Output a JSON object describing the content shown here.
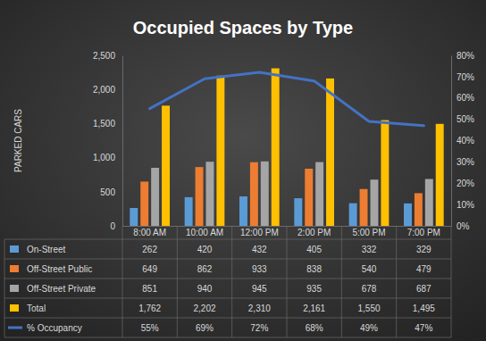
{
  "chart_data": {
    "type": "bar",
    "title": "Occupied Spaces by Type",
    "ylabel": "PARKED CARS",
    "categories": [
      "8:00 AM",
      "10:00 AM",
      "12:00 PM",
      "2:00 PM",
      "5:00 PM",
      "7:00 PM"
    ],
    "ylim": [
      0,
      2500
    ],
    "yticks": [
      0,
      500,
      {
        "value": 1000,
        "label": "1,000"
      },
      {
        "value": 1500,
        "label": "1,500"
      },
      {
        "value": 2000,
        "label": "2,000"
      },
      {
        "value": 2500,
        "label": "2,500"
      }
    ],
    "y2lim": [
      0,
      80
    ],
    "y2ticks": [
      {
        "value": 0,
        "label": "0%"
      },
      {
        "value": 10,
        "label": "10%"
      },
      {
        "value": 20,
        "label": "20%"
      },
      {
        "value": 30,
        "label": "30%"
      },
      {
        "value": 40,
        "label": "40%"
      },
      {
        "value": 50,
        "label": "50%"
      },
      {
        "value": 60,
        "label": "60%"
      },
      {
        "value": 70,
        "label": "70%"
      },
      {
        "value": 80,
        "label": "80%"
      }
    ],
    "grid": false,
    "data_labels": true,
    "series": [
      {
        "name": "On-Street",
        "type": "bar",
        "color": "#5b9bd5",
        "values": [
          262,
          420,
          432,
          405,
          332,
          329
        ]
      },
      {
        "name": "Off-Street Public",
        "type": "bar",
        "color": "#ed7d31",
        "values": [
          649,
          862,
          933,
          838,
          540,
          479
        ]
      },
      {
        "name": "Off-Street Private",
        "type": "bar",
        "color": "#a5a5a5",
        "values": [
          851,
          940,
          945,
          935,
          678,
          687
        ]
      },
      {
        "name": "Total",
        "type": "bar",
        "color": "#ffc000",
        "values": [
          1762,
          2202,
          2310,
          2161,
          1550,
          1495
        ],
        "value_labels": [
          "1,762",
          "2,202",
          "2,310",
          "2,161",
          "1,550",
          "1,495"
        ]
      },
      {
        "name": "% Occupancy",
        "type": "line",
        "axis": "y2",
        "color": "#4472c4",
        "values": [
          55,
          69,
          72,
          68,
          49,
          47
        ],
        "value_labels": [
          "55%",
          "69%",
          "72%",
          "68%",
          "49%",
          "47%"
        ]
      }
    ]
  }
}
